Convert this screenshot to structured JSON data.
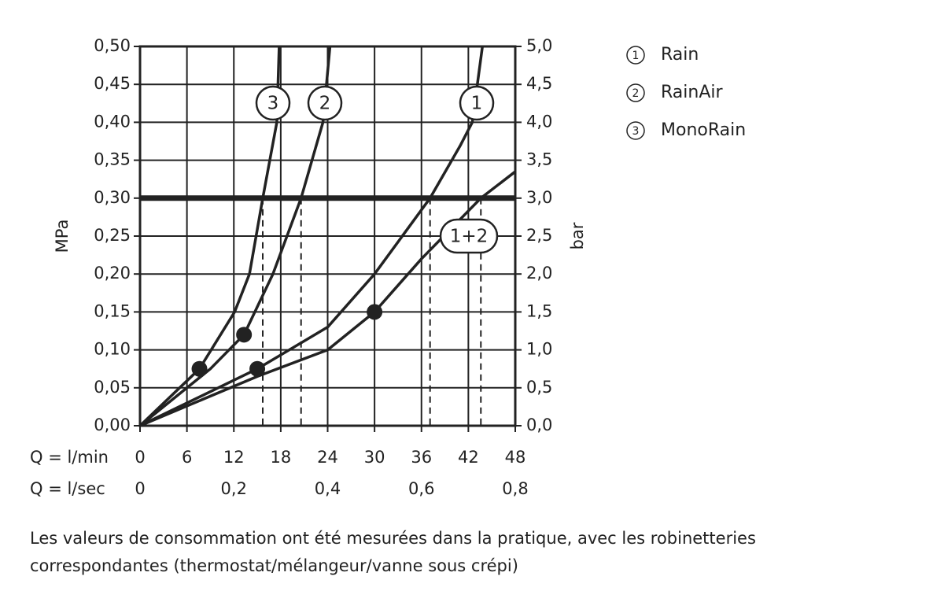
{
  "chart_data": {
    "type": "line",
    "x_label": "Q = l/min",
    "x2_label": "Q = l/sec",
    "y_label": "MPa",
    "y2_label": "bar",
    "xlim": [
      0,
      48
    ],
    "xticks": [
      0,
      6,
      12,
      18,
      24,
      30,
      36,
      42,
      48
    ],
    "x2lim": [
      0,
      0.8
    ],
    "x2ticks": [
      0,
      {
        "value": 0.2,
        "label": "0,2"
      },
      {
        "value": 0.4,
        "label": "0,4"
      },
      {
        "value": 0.6,
        "label": "0,6"
      },
      {
        "value": 0.8,
        "label": "0,8"
      }
    ],
    "ylim": [
      0,
      0.5
    ],
    "yticks": [
      {
        "value": 0,
        "label": "0,00"
      },
      {
        "value": 0.05,
        "label": "0,05"
      },
      {
        "value": 0.1,
        "label": "0,10"
      },
      {
        "value": 0.15,
        "label": "0,15"
      },
      {
        "value": 0.2,
        "label": "0,20"
      },
      {
        "value": 0.25,
        "label": "0,25"
      },
      {
        "value": 0.3,
        "label": "0,30"
      },
      {
        "value": 0.35,
        "label": "0,35"
      },
      {
        "value": 0.4,
        "label": "0,40"
      },
      {
        "value": 0.45,
        "label": "0,45"
      },
      {
        "value": 0.5,
        "label": "0,50"
      }
    ],
    "y2lim": [
      0,
      5
    ],
    "y2ticks": [
      {
        "value": 0,
        "label": "0,0"
      },
      {
        "value": 0.5,
        "label": "0,5"
      },
      {
        "value": 1,
        "label": "1,0"
      },
      {
        "value": 1.5,
        "label": "1,5"
      },
      {
        "value": 2,
        "label": "2,0"
      },
      {
        "value": 2.5,
        "label": "2,5"
      },
      {
        "value": 3,
        "label": "3,0"
      },
      {
        "value": 3.5,
        "label": "3,5"
      },
      {
        "value": 4,
        "label": "4,0"
      },
      {
        "value": 4.5,
        "label": "4,5"
      },
      {
        "value": 5,
        "label": "5,0"
      }
    ],
    "grid": true,
    "hline": 0.3,
    "color": "#222222",
    "series": [
      {
        "name": "Rain",
        "label": "1",
        "x": [
          0,
          15,
          24,
          30,
          37.1,
          41,
          42.5,
          43.8
        ],
        "values": [
          0,
          0.075,
          0.13,
          0.2,
          0.3,
          0.37,
          0.4,
          0.5
        ]
      },
      {
        "name": "RainAir",
        "label": "2",
        "x": [
          0,
          9,
          13.3,
          17,
          20.6,
          23.4,
          24.3
        ],
        "values": [
          0,
          0.075,
          0.12,
          0.2,
          0.3,
          0.4,
          0.5
        ]
      },
      {
        "name": "MonoRain",
        "label": "3",
        "x": [
          0,
          7.6,
          12.1,
          14,
          15.7,
          17.5,
          17.8
        ],
        "values": [
          0,
          0.075,
          0.15,
          0.2,
          0.3,
          0.4,
          0.5
        ]
      },
      {
        "label": "1+2",
        "x": [
          0,
          15,
          24,
          30,
          36,
          43.6,
          48
        ],
        "values": [
          0,
          0.065,
          0.1,
          0.15,
          0.22,
          0.3,
          0.335
        ]
      }
    ],
    "points": {
      "x": [
        7.6,
        13.3,
        15,
        30
      ],
      "y": [
        0.075,
        0.12,
        0.075,
        0.15
      ]
    },
    "note": [
      "Les valeurs de consommation ont été mesurées dans la pratique, avec les robinetteries",
      "correspondantes (thermostat/mélangeur/vanne sous crépi)"
    ]
  }
}
